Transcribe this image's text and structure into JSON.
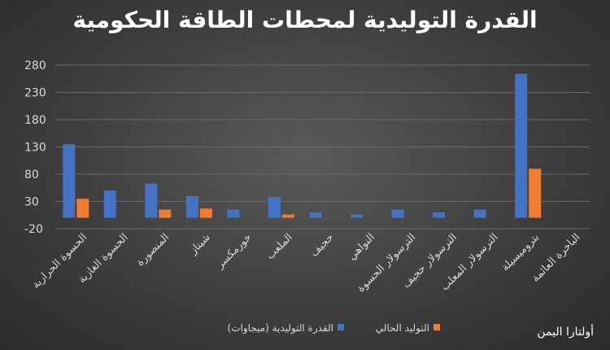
{
  "chart_data": {
    "type": "bar",
    "title": "القدرة التوليدية لمحطات الطاقة الحكومية",
    "categories": [
      "الحسوة الحرارية",
      "الحسوة الغازية",
      "المنصورة",
      "شيناز",
      "خورمكسر",
      "الملعب",
      "حجيف",
      "النواهي",
      "الترسولار الحسوة",
      "الترسولار حجيف",
      "الترسولار المعلب",
      "بتروميسيلة",
      "الباخرة العائمة"
    ],
    "series": [
      {
        "name": "القدرة التوليدية (ميجاوات)",
        "color": "#4472c4",
        "values": [
          135,
          50,
          63,
          40,
          15,
          38,
          10,
          6,
          15,
          10,
          15,
          264,
          0
        ]
      },
      {
        "name": "التوليد الحالي",
        "color": "#ed7d31",
        "values": [
          35,
          0,
          15,
          17,
          0,
          6,
          0,
          0,
          0,
          0,
          0,
          90,
          0
        ]
      }
    ],
    "y_ticks": [
      280,
      230,
      180,
      130,
      80,
      30,
      -20
    ],
    "ylim": [
      -20,
      280
    ],
    "grid": true,
    "legend_position": "bottom"
  },
  "watermark": "أولتارا اليمن"
}
